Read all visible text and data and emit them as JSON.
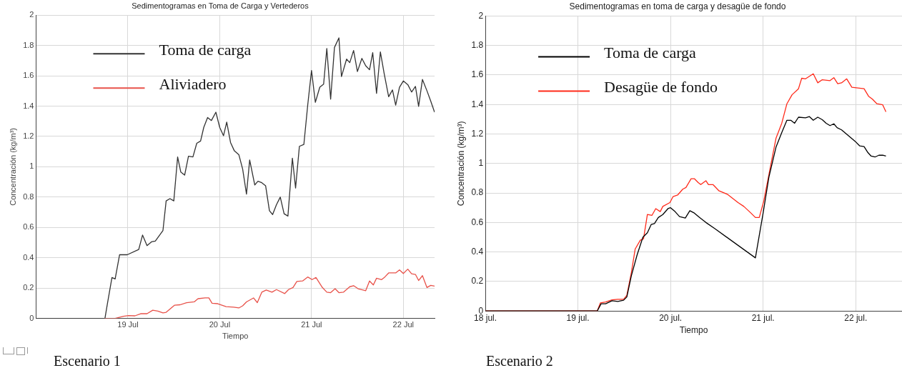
{
  "chart_data": [
    {
      "type": "line",
      "title": "Sedimentogramas en Toma de Carga y Vertederos",
      "xlabel": "Tiempo",
      "ylabel": "Concentración (kg/m³)",
      "xlim": [
        "--07-18T00:00",
        "--07-22T08:10"
      ],
      "xticks": [
        {
          "value": "--07-19",
          "label": "19 Jul"
        },
        {
          "value": "--07-20",
          "label": "20 Jul"
        },
        {
          "value": "--07-21",
          "label": "21 Jul"
        },
        {
          "value": "--07-22",
          "label": "22 Jul"
        }
      ],
      "ylim": [
        0,
        2
      ],
      "yticks": [
        0,
        0.2,
        0.4,
        0.6,
        0.8,
        1,
        1.2,
        1.4,
        1.6,
        1.8,
        2
      ],
      "grid": true,
      "legend": "top left",
      "annotations": [
        "Escenario 1"
      ],
      "series": [
        {
          "name": "Toma de carga",
          "color": "#333333",
          "x": [
            "--07-18T00:00",
            "--07-18T18:00",
            "--07-18T18:40",
            "--07-18T19:50",
            "--07-18T20:40",
            "--07-18T21:50",
            "--07-18T23:50",
            "--07-19T02:50",
            "--07-19T03:50",
            "--07-19T05:00",
            "--07-19T06:10",
            "--07-19T07:10",
            "--07-19T09:10",
            "--07-19T10:00",
            "--07-19T11:00",
            "--07-19T12:00",
            "--07-19T13:00",
            "--07-19T13:50",
            "--07-19T14:50",
            "--07-19T15:50",
            "--07-19T17:00",
            "--07-19T18:00",
            "--07-19T19:00",
            "--07-19T19:50",
            "--07-19T20:50",
            "--07-19T21:50",
            "--07-19T23:00",
            "--07-20T00:00",
            "--07-20T01:00",
            "--07-20T01:50",
            "--07-20T02:50",
            "--07-20T03:50",
            "--07-20T05:00",
            "--07-20T06:00",
            "--07-20T07:00",
            "--07-20T07:50",
            "--07-20T09:10",
            "--07-20T10:00",
            "--07-20T11:00",
            "--07-20T12:00",
            "--07-20T13:00",
            "--07-20T13:50",
            "--07-20T14:50",
            "--07-20T15:50",
            "--07-20T16:50",
            "--07-20T17:50",
            "--07-20T19:00",
            "--07-20T19:50",
            "--07-20T20:50",
            "--07-20T22:00",
            "--07-20T23:00",
            "--07-21T00:00",
            "--07-21T01:00",
            "--07-21T02:10",
            "--07-21T03:10",
            "--07-21T04:00",
            "--07-21T05:00",
            "--07-21T06:00",
            "--07-21T07:10",
            "--07-21T07:50",
            "--07-21T09:10",
            "--07-21T10:00",
            "--07-21T11:00",
            "--07-21T12:00",
            "--07-21T13:10",
            "--07-21T14:10",
            "--07-21T15:10",
            "--07-21T16:00",
            "--07-21T17:00",
            "--07-21T18:00",
            "--07-21T19:00",
            "--07-21T20:10",
            "--07-21T21:10",
            "--07-21T22:00",
            "--07-21T23:00",
            "--07-22T00:00",
            "--07-22T01:10",
            "--07-22T02:10",
            "--07-22T03:10",
            "--07-22T04:00",
            "--07-22T05:00",
            "--07-22T06:10",
            "--07-22T07:10",
            "--07-22T08:10"
          ],
          "values": [
            0,
            0,
            0.1,
            0.27,
            0.26,
            0.42,
            0.42,
            0.455,
            0.55,
            0.48,
            0.505,
            0.51,
            0.58,
            0.775,
            0.79,
            0.775,
            1.065,
            0.965,
            0.945,
            1.07,
            1.065,
            1.155,
            1.17,
            1.26,
            1.325,
            1.305,
            1.36,
            1.26,
            1.205,
            1.295,
            1.16,
            1.105,
            1.08,
            0.985,
            0.82,
            1.045,
            0.88,
            0.905,
            0.895,
            0.875,
            0.71,
            0.685,
            0.75,
            0.8,
            0.69,
            0.675,
            1.057,
            0.86,
            1.135,
            1.147,
            1.405,
            1.635,
            1.425,
            1.525,
            1.545,
            1.78,
            1.446,
            1.787,
            1.85,
            1.595,
            1.71,
            1.687,
            1.767,
            1.628,
            1.715,
            1.666,
            1.64,
            1.753,
            1.484,
            1.758,
            1.614,
            1.462,
            1.507,
            1.407,
            1.524,
            1.566,
            1.542,
            1.493,
            1.53,
            1.398,
            1.576,
            1.502,
            1.433,
            1.36
          ]
        },
        {
          "name": "Aliviadero",
          "color": "#e8524a",
          "x": [
            "--07-18T17:50",
            "--07-18T20:40",
            "--07-18T22:50",
            "--07-19T00:10",
            "--07-19T01:50",
            "--07-19T03:20",
            "--07-19T05:00",
            "--07-19T06:30",
            "--07-19T07:50",
            "--07-19T09:10",
            "--07-19T10:00",
            "--07-19T12:10",
            "--07-19T13:40",
            "--07-19T15:20",
            "--07-19T17:20",
            "--07-19T18:20",
            "--07-19T20:10",
            "--07-19T21:10",
            "--07-19T22:00",
            "--07-19T23:30",
            "--07-20T01:40",
            "--07-20T03:40",
            "--07-20T05:00",
            "--07-20T06:00",
            "--07-20T07:00",
            "--07-20T08:50",
            "--07-20T09:50",
            "--07-20T11:00",
            "--07-20T12:10",
            "--07-20T13:40",
            "--07-20T14:50",
            "--07-20T17:00",
            "--07-20T18:00",
            "--07-20T19:10",
            "--07-20T20:10",
            "--07-20T21:40",
            "--07-20T23:00",
            "--07-21T00:10",
            "--07-21T01:10",
            "--07-21T02:50",
            "--07-21T04:00",
            "--07-21T05:00",
            "--07-21T06:10",
            "--07-21T07:10",
            "--07-21T08:20",
            "--07-21T10:00",
            "--07-21T11:00",
            "--07-21T12:10",
            "--07-21T14:10",
            "--07-21T15:10",
            "--07-21T16:10",
            "--07-21T17:00",
            "--07-21T18:20",
            "--07-21T19:10",
            "--07-21T20:10",
            "--07-21T22:00",
            "--07-21T23:00",
            "--07-22T00:00",
            "--07-22T01:10",
            "--07-22T02:10",
            "--07-22T03:10",
            "--07-22T04:00",
            "--07-22T05:00",
            "--07-22T06:10",
            "--07-22T07:10",
            "--07-22T08:10"
          ],
          "values": [
            0,
            0,
            0.014,
            0.019,
            0.017,
            0.031,
            0.031,
            0.054,
            0.048,
            0.036,
            0.04,
            0.087,
            0.09,
            0.104,
            0.109,
            0.13,
            0.135,
            0.135,
            0.1,
            0.097,
            0.078,
            0.074,
            0.069,
            0.083,
            0.109,
            0.135,
            0.104,
            0.173,
            0.187,
            0.173,
            0.19,
            0.164,
            0.19,
            0.204,
            0.244,
            0.247,
            0.273,
            0.256,
            0.27,
            0.204,
            0.173,
            0.17,
            0.196,
            0.17,
            0.173,
            0.209,
            0.216,
            0.196,
            0.183,
            0.247,
            0.221,
            0.265,
            0.256,
            0.273,
            0.3,
            0.3,
            0.32,
            0.296,
            0.325,
            0.294,
            0.29,
            0.25,
            0.282,
            0.204,
            0.218,
            0.213
          ]
        }
      ]
    },
    {
      "type": "line",
      "title": "Sedimentogramas en toma de carga y desagüe de fondo",
      "xlabel": "Tiempo",
      "ylabel": "Concentración (kg/m³)",
      "xlim": [
        "--07-18T00:00",
        "--07-22T12:00"
      ],
      "xticks": [
        {
          "value": "--07-18",
          "label": "18 jul."
        },
        {
          "value": "--07-19",
          "label": "19 jul."
        },
        {
          "value": "--07-20",
          "label": "20 jul."
        },
        {
          "value": "--07-21",
          "label": "21 jul."
        },
        {
          "value": "--07-22",
          "label": "22 jul."
        }
      ],
      "ylim": [
        0,
        2
      ],
      "yticks": [
        0,
        0.2,
        0.4,
        0.6,
        0.8,
        1,
        1.2,
        1.4,
        1.6,
        1.8,
        2
      ],
      "grid": true,
      "legend": "top left",
      "annotations": [
        "Escenario 2"
      ],
      "series": [
        {
          "name": "Toma de carga",
          "color": "#000000",
          "x": [
            "--07-18T00:00",
            "--07-19T05:00",
            "--07-19T06:00",
            "--07-19T07:10",
            "--07-19T08:50",
            "--07-19T10:20",
            "--07-19T11:50",
            "--07-19T12:40",
            "--07-19T13:50",
            "--07-19T15:20",
            "--07-19T16:50",
            "--07-19T18:00",
            "--07-19T19:00",
            "--07-19T19:50",
            "--07-19T20:50",
            "--07-19T22:00",
            "--07-19T23:20",
            "--07-20T00:00",
            "--07-20T01:10",
            "--07-20T02:20",
            "--07-20T03:50",
            "--07-20T05:00",
            "--07-20T06:10",
            "--07-20T07:30",
            "--07-20T08:20",
            "--07-20T09:10",
            "--07-20T11:30",
            "--07-20T22:00",
            "--07-21T00:00",
            "--07-21T01:30",
            "--07-21T03:20",
            "--07-21T04:50",
            "--07-21T06:10",
            "--07-21T07:10",
            "--07-21T08:10",
            "--07-21T09:10",
            "--07-21T11:00",
            "--07-21T12:00",
            "--07-21T13:00",
            "--07-21T14:10",
            "--07-21T15:20",
            "--07-21T16:20",
            "--07-21T17:20",
            "--07-21T18:20",
            "--07-21T19:10",
            "--07-21T20:20",
            "--07-21T23:50",
            "--07-22T01:00",
            "--07-22T02:10",
            "--07-22T03:10",
            "--07-22T04:00",
            "--07-22T05:00",
            "--07-22T06:00",
            "--07-22T07:00",
            "--07-22T07:50"
          ],
          "values": [
            0,
            0,
            0.049,
            0.049,
            0.069,
            0.065,
            0.073,
            0.095,
            0.238,
            0.38,
            0.5,
            0.53,
            0.587,
            0.593,
            0.634,
            0.654,
            0.694,
            0.7,
            0.674,
            0.64,
            0.63,
            0.68,
            0.664,
            0.634,
            0.617,
            0.6,
            0.558,
            0.36,
            0.664,
            0.908,
            1.11,
            1.21,
            1.293,
            1.293,
            1.273,
            1.314,
            1.31,
            1.318,
            1.293,
            1.314,
            1.297,
            1.273,
            1.257,
            1.269,
            1.243,
            1.228,
            1.151,
            1.12,
            1.115,
            1.074,
            1.05,
            1.044,
            1.056,
            1.056,
            1.05
          ]
        },
        {
          "name": "Desagüe de fondo",
          "color": "#ff2a1a",
          "x": [
            "--07-18T00:00",
            "--07-19T05:00",
            "--07-19T05:50",
            "--07-19T07:10",
            "--07-19T08:50",
            "--07-19T10:20",
            "--07-19T11:50",
            "--07-19T12:40",
            "--07-19T13:50",
            "--07-19T14:50",
            "--07-19T16:10",
            "--07-19T17:00",
            "--07-19T18:00",
            "--07-19T19:10",
            "--07-19T20:10",
            "--07-19T21:20",
            "--07-19T22:00",
            "--07-19T23:50",
            "--07-20T00:40",
            "--07-20T01:50",
            "--07-20T03:10",
            "--07-20T04:00",
            "--07-20T05:20",
            "--07-20T06:10",
            "--07-20T07:10",
            "--07-20T07:50",
            "--07-20T09:10",
            "--07-20T09:50",
            "--07-20T11:00",
            "--07-20T12:30",
            "--07-20T14:50",
            "--07-20T17:30",
            "--07-20T19:00",
            "--07-20T20:50",
            "--07-20T22:00",
            "--07-20T23:00",
            "--07-21T00:10",
            "--07-21T01:50",
            "--07-21T03:20",
            "--07-21T04:50",
            "--07-21T06:10",
            "--07-21T07:30",
            "--07-21T09:10",
            "--07-21T10:00",
            "--07-21T11:00",
            "--07-21T13:00",
            "--07-21T14:10",
            "--07-21T15:20",
            "--07-21T17:20",
            "--07-21T18:20",
            "--07-21T19:20",
            "--07-21T20:20",
            "--07-21T21:40",
            "--07-21T23:00",
            "--07-22T02:10",
            "--07-22T03:20",
            "--07-22T04:20",
            "--07-22T05:30",
            "--07-22T07:00",
            "--07-22T07:50"
          ],
          "values": [
            0,
            0,
            0.055,
            0.061,
            0.075,
            0.079,
            0.079,
            0.106,
            0.258,
            0.42,
            0.48,
            0.49,
            0.654,
            0.648,
            0.694,
            0.674,
            0.709,
            0.735,
            0.776,
            0.786,
            0.826,
            0.837,
            0.897,
            0.897,
            0.871,
            0.857,
            0.883,
            0.857,
            0.857,
            0.816,
            0.79,
            0.735,
            0.709,
            0.664,
            0.634,
            0.634,
            0.745,
            0.969,
            1.171,
            1.273,
            1.405,
            1.466,
            1.507,
            1.578,
            1.574,
            1.608,
            1.547,
            1.568,
            1.562,
            1.582,
            1.541,
            1.547,
            1.574,
            1.517,
            1.507,
            1.456,
            1.436,
            1.405,
            1.398,
            1.35
          ]
        }
      ]
    }
  ]
}
